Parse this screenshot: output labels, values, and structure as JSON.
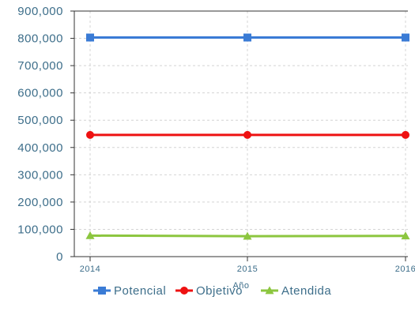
{
  "chart_data": {
    "type": "line",
    "x": [
      "2014",
      "2015",
      "2016"
    ],
    "xlabel": "Año",
    "ylabel": "",
    "ylim": [
      0,
      900000
    ],
    "yticks": [
      "0",
      "100,000",
      "200,000",
      "300,000",
      "400,000",
      "500,000",
      "600,000",
      "700,000",
      "800,000",
      "900,000"
    ],
    "grid": true,
    "legend_position": "bottom",
    "series": [
      {
        "name": "Potencial",
        "values": [
          803000,
          803000,
          803000
        ],
        "color": "#3a7bd5",
        "marker": "square"
      },
      {
        "name": "Objetivo",
        "values": [
          446000,
          446000,
          446000
        ],
        "color": "#ee1111",
        "marker": "circle"
      },
      {
        "name": "Atendida",
        "values": [
          77000,
          75000,
          76000
        ],
        "color": "#8cc63f",
        "marker": "triangle"
      }
    ]
  }
}
